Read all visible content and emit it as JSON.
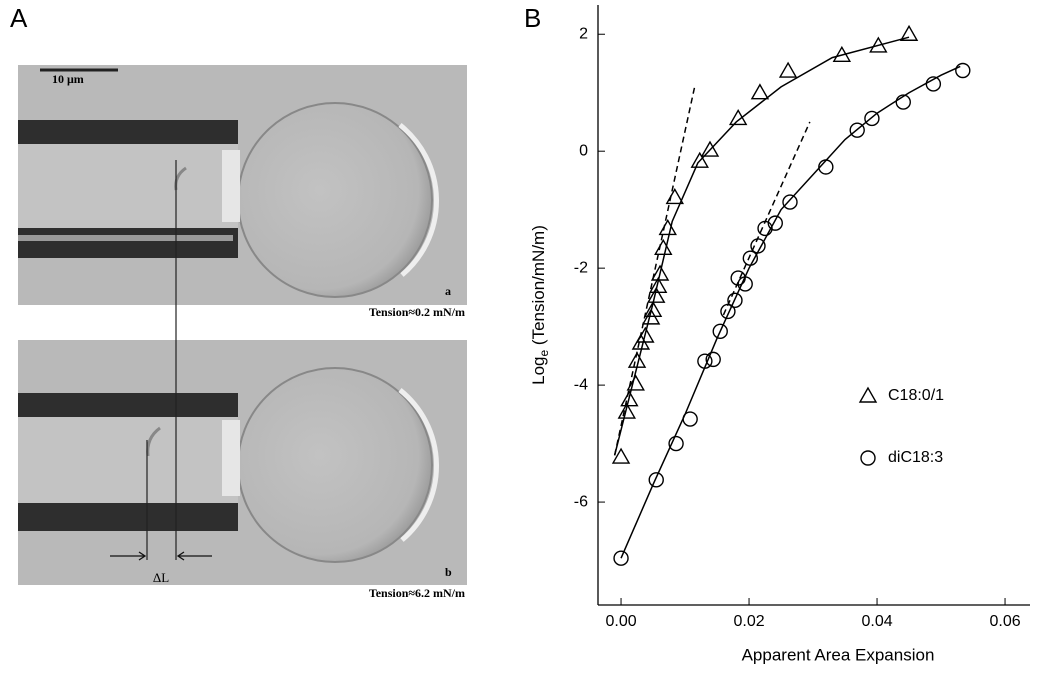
{
  "panel_labels": [
    "A",
    "B"
  ],
  "panel_a": {
    "scale_bar": "10 μm",
    "delta": "ΔL",
    "images": [
      {
        "label": "a",
        "caption": "Tension≈0.2 mN/m"
      },
      {
        "label": "b",
        "caption": "Tension≈6.2 mN/m"
      }
    ]
  },
  "chart_data": {
    "type": "scatter",
    "xlim": [
      -0.0036,
      0.0639
    ],
    "ylim": [
      -7.76,
      2.5
    ],
    "xticks": [
      {
        "value": 0,
        "label": "0.00"
      },
      {
        "value": 0.02,
        "label": "0.02"
      },
      {
        "value": 0.04,
        "label": "0.04"
      },
      {
        "value": 0.06,
        "label": "0.06"
      }
    ],
    "yticks": [
      -6,
      -4,
      -2,
      0,
      2
    ],
    "x_label": "Apparent Area Expansion",
    "y_label": {
      "text": "Log",
      "subscript": "e",
      "rest": " (Tension/mN/m)"
    },
    "series": [
      {
        "name": "C18:0/1",
        "marker": "triangle",
        "color": "#000000",
        "x": [
          0,
          0.0009,
          0.0013,
          0.0023,
          0.0025,
          0.0031,
          0.0038,
          0.0047,
          0.005,
          0.0055,
          0.0058,
          0.0061,
          0.0066,
          0.0073,
          0.0084,
          0.0123,
          0.0139,
          0.0183,
          0.0217,
          0.0261,
          0.0345,
          0.0402,
          0.045
        ],
        "values": [
          -5.23,
          -4.46,
          -4.25,
          -3.98,
          -3.59,
          -3.28,
          -3.16,
          -2.85,
          -2.72,
          -2.48,
          -2.31,
          -2.1,
          -1.66,
          -1.32,
          -0.79,
          -0.17,
          0.02,
          0.56,
          1.0,
          1.37,
          1.64,
          1.8,
          2.0
        ]
      },
      {
        "name": "diC18:3",
        "marker": "circle",
        "color": "#000000",
        "x": [
          0,
          0.0055,
          0.0086,
          0.0108,
          0.0131,
          0.0144,
          0.0155,
          0.0167,
          0.0178,
          0.0183,
          0.0194,
          0.0202,
          0.0214,
          0.0225,
          0.0241,
          0.0264,
          0.032,
          0.0369,
          0.0392,
          0.0441,
          0.0488,
          0.0534
        ],
        "values": [
          -6.96,
          -5.62,
          -5.0,
          -4.58,
          -3.59,
          -3.56,
          -3.08,
          -2.74,
          -2.55,
          -2.17,
          -2.27,
          -1.83,
          -1.62,
          -1.32,
          -1.23,
          -0.87,
          -0.27,
          0.36,
          0.56,
          0.84,
          1.15,
          1.38
        ]
      }
    ],
    "fits": [
      {
        "style": "solid",
        "x": [
          -0.001,
          0.002,
          0.005,
          0.008,
          0.012,
          0.018,
          0.025,
          0.033,
          0.045
        ],
        "values": [
          -5.2,
          -3.9,
          -2.6,
          -1.2,
          -0.2,
          0.5,
          1.1,
          1.6,
          1.95
        ]
      },
      {
        "style": "dashed",
        "x": [
          -0.001,
          0.0115
        ],
        "values": [
          -5.2,
          1.1
        ]
      },
      {
        "style": "solid",
        "x": [
          0,
          0.005,
          0.01,
          0.015,
          0.02,
          0.025,
          0.03,
          0.035,
          0.04,
          0.045,
          0.05,
          0.053
        ],
        "values": [
          -6.96,
          -5.7,
          -4.5,
          -3.2,
          -2.0,
          -1.0,
          -0.4,
          0.2,
          0.65,
          1.0,
          1.3,
          1.45
        ]
      },
      {
        "style": "dashed",
        "x": [
          0.016,
          0.0295
        ],
        "values": [
          -2.8,
          0.5
        ]
      }
    ]
  }
}
